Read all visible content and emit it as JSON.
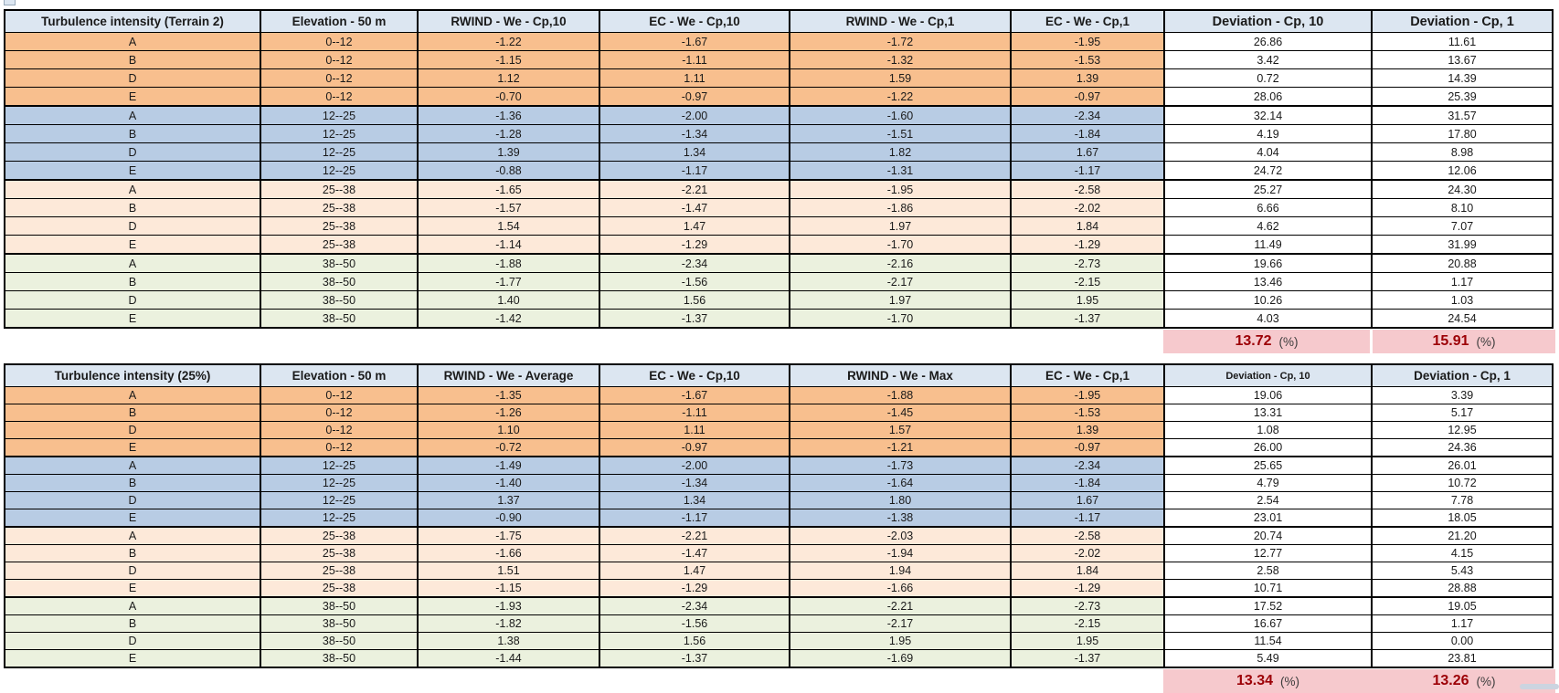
{
  "colors": {
    "header_bg": "#dce6f1",
    "group_orange": "#f8bf8e",
    "group_blue": "#b8cce4",
    "group_peach": "#fde9d9",
    "group_green": "#ebf1de",
    "summary_bg": "#f6c9cd",
    "summary_value": "#9c0006",
    "border": "#000000"
  },
  "tables": [
    {
      "title": "Turbulence intensity (Terrain 2)",
      "headers": [
        "Turbulence intensity (Terrain 2)",
        "Elevation - 50 m",
        "RWIND - We - Cp,10",
        "EC - We - Cp,10",
        "RWIND - We - Cp,1",
        "EC - We - Cp,1",
        "Deviation - Cp, 10",
        "Deviation - Cp, 1"
      ],
      "rows": [
        {
          "category": "A",
          "elevation": "0--12",
          "values": [
            "-1.22",
            "-1.67",
            "-1.72",
            "-1.95",
            "26.86",
            "11.61"
          ],
          "group": 0
        },
        {
          "category": "B",
          "elevation": "0--12",
          "values": [
            "-1.15",
            "-1.11",
            "-1.32",
            "-1.53",
            "3.42",
            "13.67"
          ],
          "group": 0
        },
        {
          "category": "D",
          "elevation": "0--12",
          "values": [
            "1.12",
            "1.11",
            "1.59",
            "1.39",
            "0.72",
            "14.39"
          ],
          "group": 0
        },
        {
          "category": "E",
          "elevation": "0--12",
          "values": [
            "-0.70",
            "-0.97",
            "-1.22",
            "-0.97",
            "28.06",
            "25.39"
          ],
          "group": 0
        },
        {
          "category": "A",
          "elevation": "12--25",
          "values": [
            "-1.36",
            "-2.00",
            "-1.60",
            "-2.34",
            "32.14",
            "31.57"
          ],
          "group": 1
        },
        {
          "category": "B",
          "elevation": "12--25",
          "values": [
            "-1.28",
            "-1.34",
            "-1.51",
            "-1.84",
            "4.19",
            "17.80"
          ],
          "group": 1
        },
        {
          "category": "D",
          "elevation": "12--25",
          "values": [
            "1.39",
            "1.34",
            "1.82",
            "1.67",
            "4.04",
            "8.98"
          ],
          "group": 1
        },
        {
          "category": "E",
          "elevation": "12--25",
          "values": [
            "-0.88",
            "-1.17",
            "-1.31",
            "-1.17",
            "24.72",
            "12.06"
          ],
          "group": 1
        },
        {
          "category": "A",
          "elevation": "25--38",
          "values": [
            "-1.65",
            "-2.21",
            "-1.95",
            "-2.58",
            "25.27",
            "24.30"
          ],
          "group": 2
        },
        {
          "category": "B",
          "elevation": "25--38",
          "values": [
            "-1.57",
            "-1.47",
            "-1.86",
            "-2.02",
            "6.66",
            "8.10"
          ],
          "group": 2
        },
        {
          "category": "D",
          "elevation": "25--38",
          "values": [
            "1.54",
            "1.47",
            "1.97",
            "1.84",
            "4.62",
            "7.07"
          ],
          "group": 2
        },
        {
          "category": "E",
          "elevation": "25--38",
          "values": [
            "-1.14",
            "-1.29",
            "-1.70",
            "-1.29",
            "11.49",
            "31.99"
          ],
          "group": 2
        },
        {
          "category": "A",
          "elevation": "38--50",
          "values": [
            "-1.88",
            "-2.34",
            "-2.16",
            "-2.73",
            "19.66",
            "20.88"
          ],
          "group": 3
        },
        {
          "category": "B",
          "elevation": "38--50",
          "values": [
            "-1.77",
            "-1.56",
            "-2.17",
            "-2.15",
            "13.46",
            "1.17"
          ],
          "group": 3
        },
        {
          "category": "D",
          "elevation": "38--50",
          "values": [
            "1.40",
            "1.56",
            "1.97",
            "1.95",
            "10.26",
            "1.03"
          ],
          "group": 3
        },
        {
          "category": "E",
          "elevation": "38--50",
          "values": [
            "-1.42",
            "-1.37",
            "-1.70",
            "-1.37",
            "4.03",
            "24.54"
          ],
          "group": 3
        }
      ],
      "summary": {
        "dev_cp10": "13.72",
        "dev_cp1": "15.91",
        "unit": "(%)"
      }
    },
    {
      "title": "Turbulence intensity (25%)",
      "headers": [
        "Turbulence intensity (25%)",
        "Elevation - 50 m",
        "RWIND - We - Average",
        "EC - We - Cp,10",
        "RWIND - We - Max",
        "EC - We - Cp,1",
        "Deviation - Cp, 10",
        "Deviation - Cp, 1"
      ],
      "rows": [
        {
          "category": "A",
          "elevation": "0--12",
          "values": [
            "-1.35",
            "-1.67",
            "-1.88",
            "-1.95",
            "19.06",
            "3.39"
          ],
          "group": 0
        },
        {
          "category": "B",
          "elevation": "0--12",
          "values": [
            "-1.26",
            "-1.11",
            "-1.45",
            "-1.53",
            "13.31",
            "5.17"
          ],
          "group": 0
        },
        {
          "category": "D",
          "elevation": "0--12",
          "values": [
            "1.10",
            "1.11",
            "1.57",
            "1.39",
            "1.08",
            "12.95"
          ],
          "group": 0
        },
        {
          "category": "E",
          "elevation": "0--12",
          "values": [
            "-0.72",
            "-0.97",
            "-1.21",
            "-0.97",
            "26.00",
            "24.36"
          ],
          "group": 0
        },
        {
          "category": "A",
          "elevation": "12--25",
          "values": [
            "-1.49",
            "-2.00",
            "-1.73",
            "-2.34",
            "25.65",
            "26.01"
          ],
          "group": 1
        },
        {
          "category": "B",
          "elevation": "12--25",
          "values": [
            "-1.40",
            "-1.34",
            "-1.64",
            "-1.84",
            "4.79",
            "10.72"
          ],
          "group": 1
        },
        {
          "category": "D",
          "elevation": "12--25",
          "values": [
            "1.37",
            "1.34",
            "1.80",
            "1.67",
            "2.54",
            "7.78"
          ],
          "group": 1
        },
        {
          "category": "E",
          "elevation": "12--25",
          "values": [
            "-0.90",
            "-1.17",
            "-1.38",
            "-1.17",
            "23.01",
            "18.05"
          ],
          "group": 1
        },
        {
          "category": "A",
          "elevation": "25--38",
          "values": [
            "-1.75",
            "-2.21",
            "-2.03",
            "-2.58",
            "20.74",
            "21.20"
          ],
          "group": 2
        },
        {
          "category": "B",
          "elevation": "25--38",
          "values": [
            "-1.66",
            "-1.47",
            "-1.94",
            "-2.02",
            "12.77",
            "4.15"
          ],
          "group": 2
        },
        {
          "category": "D",
          "elevation": "25--38",
          "values": [
            "1.51",
            "1.47",
            "1.94",
            "1.84",
            "2.58",
            "5.43"
          ],
          "group": 2
        },
        {
          "category": "E",
          "elevation": "25--38",
          "values": [
            "-1.15",
            "-1.29",
            "-1.66",
            "-1.29",
            "10.71",
            "28.88"
          ],
          "group": 2
        },
        {
          "category": "A",
          "elevation": "38--50",
          "values": [
            "-1.93",
            "-2.34",
            "-2.21",
            "-2.73",
            "17.52",
            "19.05"
          ],
          "group": 3
        },
        {
          "category": "B",
          "elevation": "38--50",
          "values": [
            "-1.82",
            "-1.56",
            "-2.17",
            "-2.15",
            "16.67",
            "1.17"
          ],
          "group": 3
        },
        {
          "category": "D",
          "elevation": "38--50",
          "values": [
            "1.38",
            "1.56",
            "1.95",
            "1.95",
            "11.54",
            "0.00"
          ],
          "group": 3
        },
        {
          "category": "E",
          "elevation": "38--50",
          "values": [
            "-1.44",
            "-1.37",
            "-1.69",
            "-1.37",
            "5.49",
            "23.81"
          ],
          "group": 3
        }
      ],
      "summary": {
        "dev_cp10": "13.34",
        "dev_cp1": "13.26",
        "unit": "(%)"
      }
    }
  ]
}
